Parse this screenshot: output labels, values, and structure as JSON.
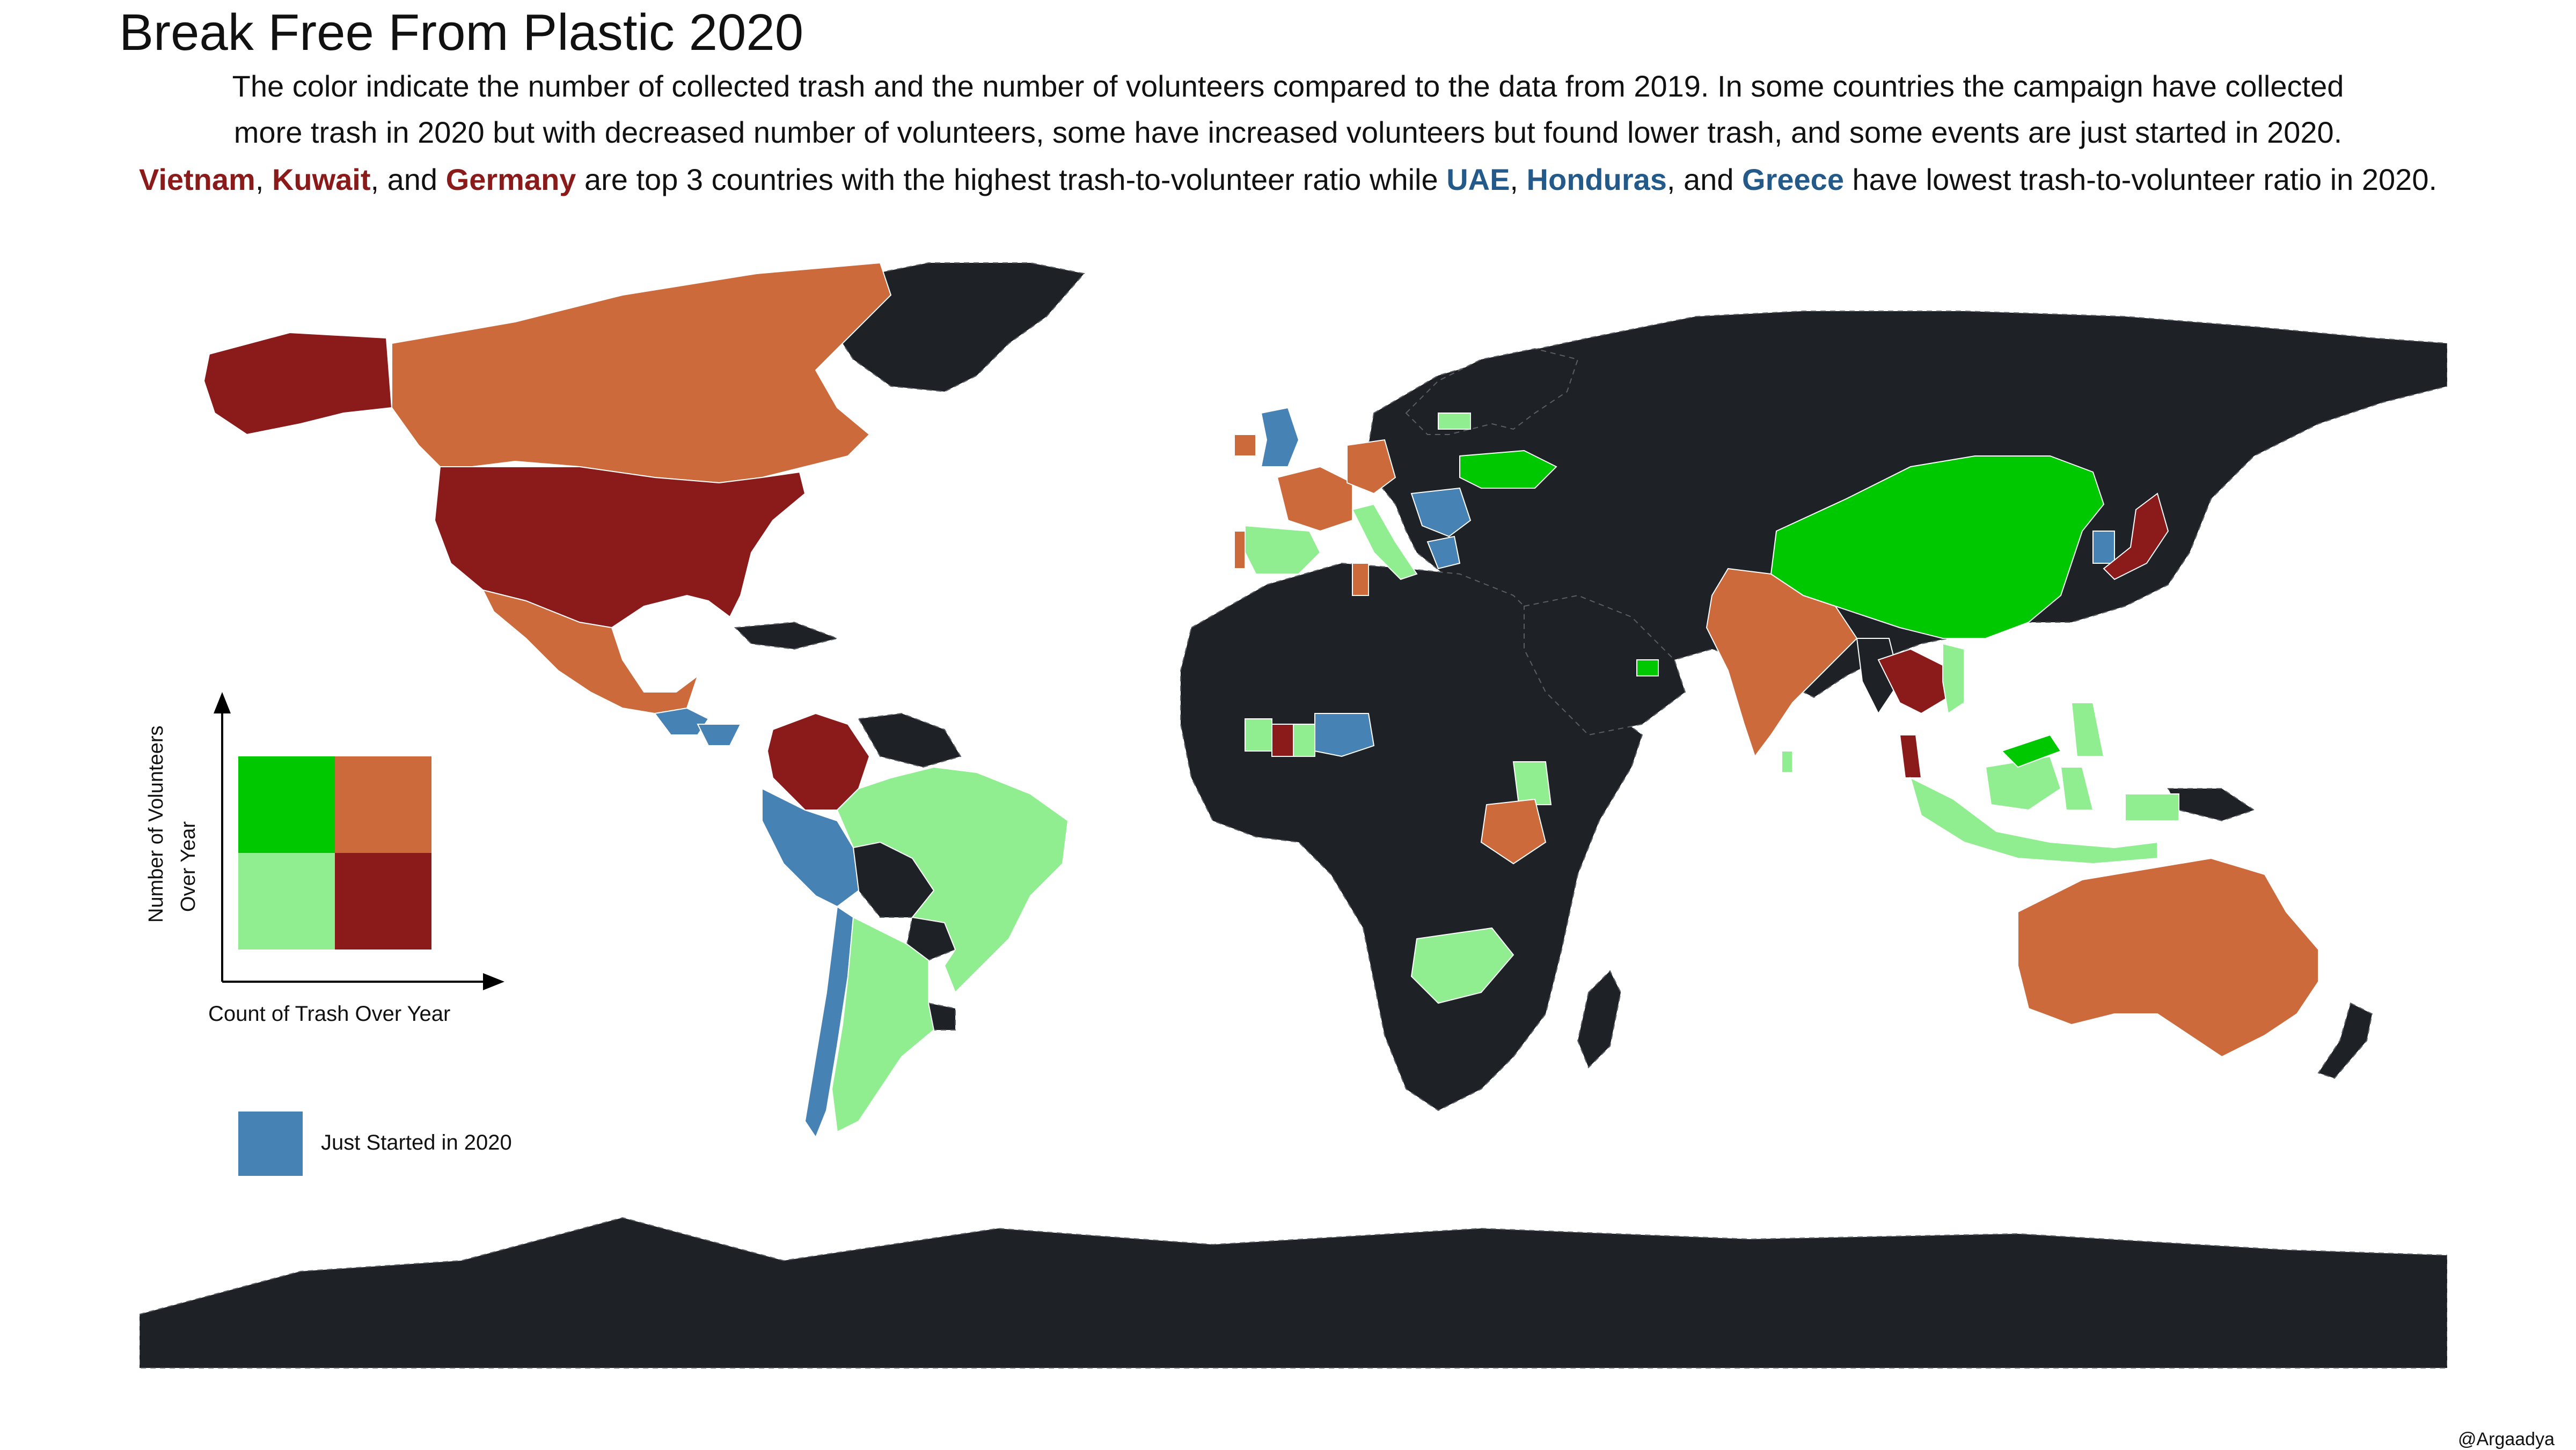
{
  "title": "Break Free From Plastic 2020",
  "subtitle": {
    "line1": "The color indicate the number of collected trash and the number of volunteers compared to the data from 2019. In some countries the campaign have collected",
    "line2": "more trash in 2020 but with decreased number of volunteers, some have increased volunteers but found lower trash, and some events are just started in 2020.",
    "line3": {
      "top": [
        "Vietnam",
        "Kuwait",
        "Germany"
      ],
      "sep1": ",",
      "and": ", and",
      "middle": "are top 3 countries with the highest trash-to-volunteer ratio while",
      "bottom": [
        "UAE",
        "Honduras",
        "Greece"
      ],
      "end": "have lowest trash-to-volunteer ratio in 2020."
    }
  },
  "legend": {
    "y_axis_label_1": "Number of Volunteers",
    "y_axis_label_2": "Over Year",
    "x_axis_label": "Count of Trash Over Year",
    "just_started_label": "Just Started in 2020",
    "colors": {
      "more_volunteers_less_trash": "#00c800",
      "more_volunteers_more_trash": "#cc6a3c",
      "less_volunteers_less_trash": "#90ee90",
      "less_volunteers_more_trash": "#8b1a1a",
      "just_started": "#4682b4",
      "no_data": "#1e2227"
    }
  },
  "credit": "@Argaadya"
}
